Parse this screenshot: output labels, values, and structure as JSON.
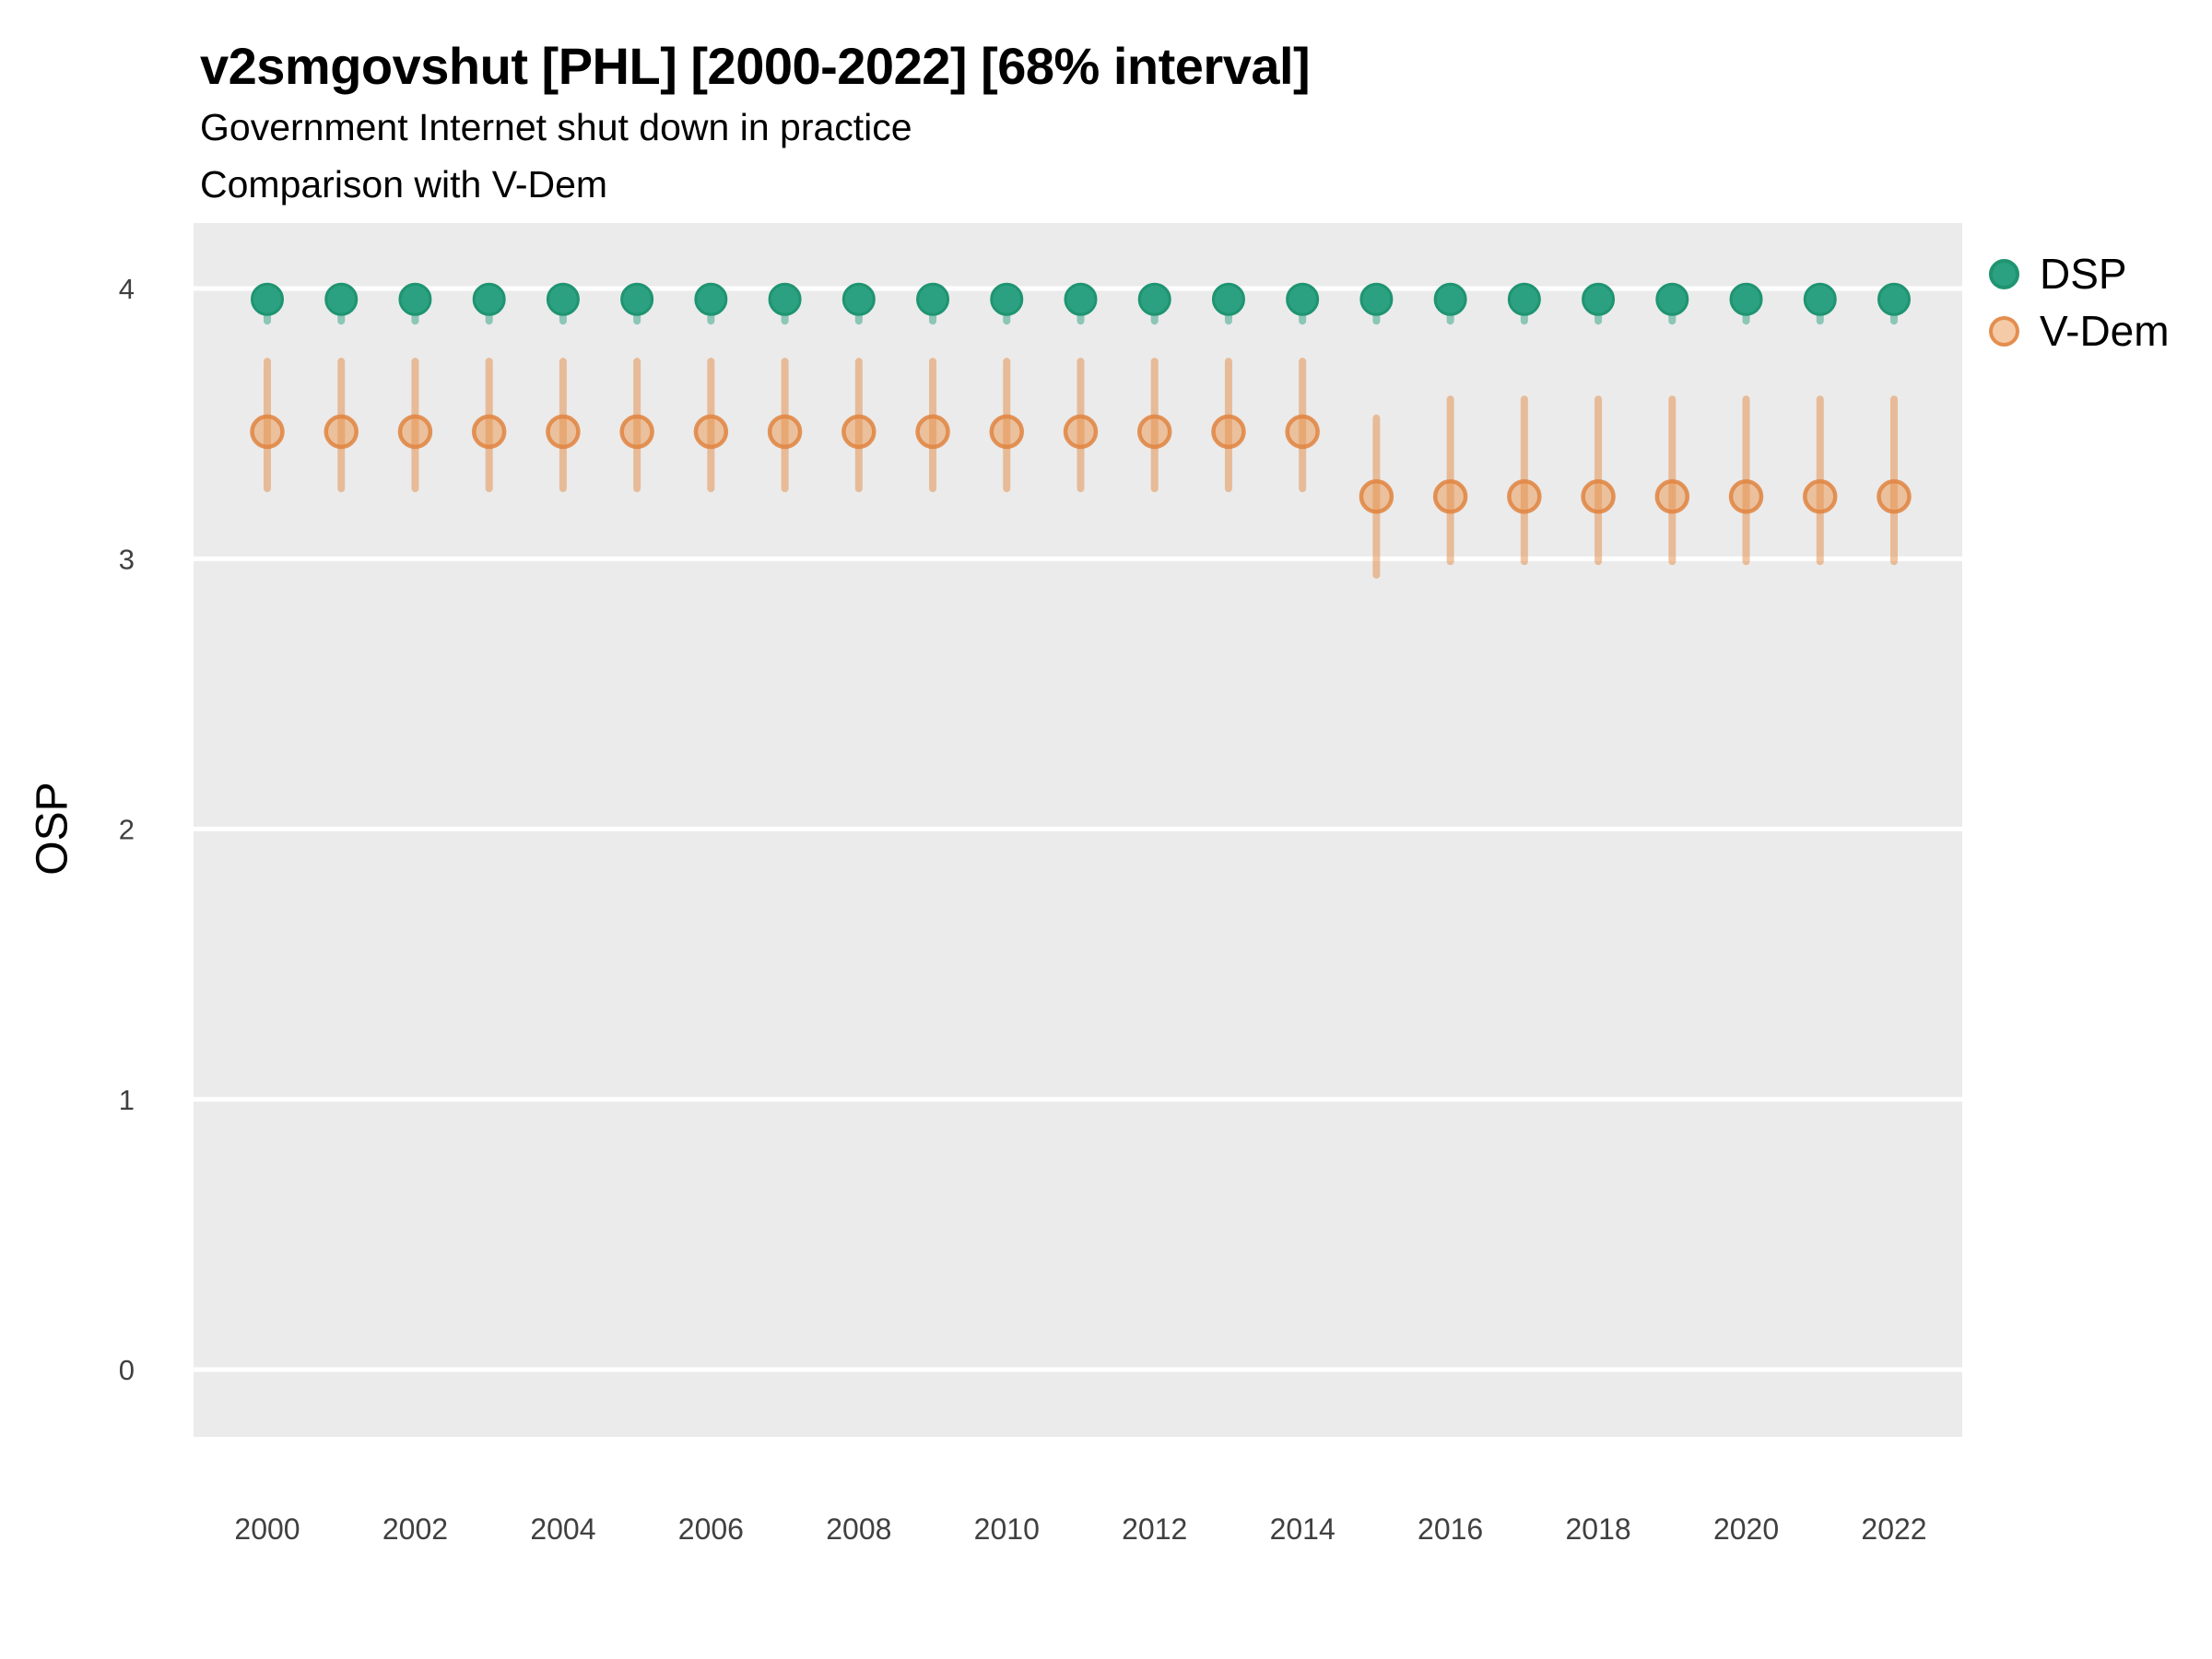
{
  "header": {
    "title": "v2smgovshut [PHL] [2000-2022] [68% interval]",
    "subtitle_line1": "Government Internet shut down in practice",
    "subtitle_line2": "Comparison with V-Dem"
  },
  "chart_data": {
    "type": "scatter",
    "title": "v2smgovshut [PHL] [2000-2022] [68% interval]",
    "subtitle": [
      "Government Internet shut down in practice",
      "Comparison with V-Dem"
    ],
    "xlabel": "",
    "ylabel": "OSP",
    "interval": "68%",
    "ylim": [
      -0.25,
      4.25
    ],
    "yticks": [
      0,
      1,
      2,
      3,
      4
    ],
    "xlim": [
      1999,
      2023
    ],
    "xticks": [
      2000,
      2002,
      2004,
      2006,
      2008,
      2010,
      2012,
      2014,
      2016,
      2018,
      2020,
      2022
    ],
    "grid": "horizontal-major-only",
    "legend_position": "top-right",
    "panel_bg": "#ebebeb",
    "gridline_color": "#ffffff",
    "tick_label_color": "#404040",
    "series": [
      {
        "name": "DSP",
        "marker_fill": "#2ca181",
        "marker_stroke": "#1f9471",
        "marker_stroke_width": 3,
        "interval_color": "rgba(44,161,129,0.5)",
        "points": [
          {
            "x": 2000,
            "y": 3.96,
            "lo": 3.88,
            "hi": 4.0
          },
          {
            "x": 2001,
            "y": 3.96,
            "lo": 3.88,
            "hi": 4.0
          },
          {
            "x": 2002,
            "y": 3.96,
            "lo": 3.88,
            "hi": 4.0
          },
          {
            "x": 2003,
            "y": 3.96,
            "lo": 3.88,
            "hi": 4.0
          },
          {
            "x": 2004,
            "y": 3.96,
            "lo": 3.88,
            "hi": 4.0
          },
          {
            "x": 2005,
            "y": 3.96,
            "lo": 3.88,
            "hi": 4.0
          },
          {
            "x": 2006,
            "y": 3.96,
            "lo": 3.88,
            "hi": 4.0
          },
          {
            "x": 2007,
            "y": 3.96,
            "lo": 3.88,
            "hi": 4.0
          },
          {
            "x": 2008,
            "y": 3.96,
            "lo": 3.88,
            "hi": 4.0
          },
          {
            "x": 2009,
            "y": 3.96,
            "lo": 3.88,
            "hi": 4.0
          },
          {
            "x": 2010,
            "y": 3.96,
            "lo": 3.88,
            "hi": 4.0
          },
          {
            "x": 2011,
            "y": 3.96,
            "lo": 3.88,
            "hi": 4.0
          },
          {
            "x": 2012,
            "y": 3.96,
            "lo": 3.88,
            "hi": 4.0
          },
          {
            "x": 2013,
            "y": 3.96,
            "lo": 3.88,
            "hi": 4.0
          },
          {
            "x": 2014,
            "y": 3.96,
            "lo": 3.88,
            "hi": 4.0
          },
          {
            "x": 2015,
            "y": 3.96,
            "lo": 3.88,
            "hi": 4.0
          },
          {
            "x": 2016,
            "y": 3.96,
            "lo": 3.88,
            "hi": 4.0
          },
          {
            "x": 2017,
            "y": 3.96,
            "lo": 3.88,
            "hi": 4.0
          },
          {
            "x": 2018,
            "y": 3.96,
            "lo": 3.88,
            "hi": 4.0
          },
          {
            "x": 2019,
            "y": 3.96,
            "lo": 3.88,
            "hi": 4.0
          },
          {
            "x": 2020,
            "y": 3.96,
            "lo": 3.88,
            "hi": 4.0
          },
          {
            "x": 2021,
            "y": 3.96,
            "lo": 3.88,
            "hi": 4.0
          },
          {
            "x": 2022,
            "y": 3.96,
            "lo": 3.88,
            "hi": 4.0
          }
        ]
      },
      {
        "name": "V-Dem",
        "marker_fill": "rgba(233,150,80,0.5)",
        "marker_stroke": "rgba(224,132,64,0.85)",
        "marker_stroke_width": 4.5,
        "interval_color": "rgba(228,140,70,0.5)",
        "points": [
          {
            "x": 2000,
            "y": 3.47,
            "lo": 3.26,
            "hi": 3.73
          },
          {
            "x": 2001,
            "y": 3.47,
            "lo": 3.26,
            "hi": 3.73
          },
          {
            "x": 2002,
            "y": 3.47,
            "lo": 3.26,
            "hi": 3.73
          },
          {
            "x": 2003,
            "y": 3.47,
            "lo": 3.26,
            "hi": 3.73
          },
          {
            "x": 2004,
            "y": 3.47,
            "lo": 3.26,
            "hi": 3.73
          },
          {
            "x": 2005,
            "y": 3.47,
            "lo": 3.26,
            "hi": 3.73
          },
          {
            "x": 2006,
            "y": 3.47,
            "lo": 3.26,
            "hi": 3.73
          },
          {
            "x": 2007,
            "y": 3.47,
            "lo": 3.26,
            "hi": 3.73
          },
          {
            "x": 2008,
            "y": 3.47,
            "lo": 3.26,
            "hi": 3.73
          },
          {
            "x": 2009,
            "y": 3.47,
            "lo": 3.26,
            "hi": 3.73
          },
          {
            "x": 2010,
            "y": 3.47,
            "lo": 3.26,
            "hi": 3.73
          },
          {
            "x": 2011,
            "y": 3.47,
            "lo": 3.26,
            "hi": 3.73
          },
          {
            "x": 2012,
            "y": 3.47,
            "lo": 3.26,
            "hi": 3.73
          },
          {
            "x": 2013,
            "y": 3.47,
            "lo": 3.26,
            "hi": 3.73
          },
          {
            "x": 2014,
            "y": 3.47,
            "lo": 3.26,
            "hi": 3.73
          },
          {
            "x": 2015,
            "y": 3.23,
            "lo": 2.94,
            "hi": 3.52
          },
          {
            "x": 2016,
            "y": 3.23,
            "lo": 2.99,
            "hi": 3.59
          },
          {
            "x": 2017,
            "y": 3.23,
            "lo": 2.99,
            "hi": 3.59
          },
          {
            "x": 2018,
            "y": 3.23,
            "lo": 2.99,
            "hi": 3.59
          },
          {
            "x": 2019,
            "y": 3.23,
            "lo": 2.99,
            "hi": 3.59
          },
          {
            "x": 2020,
            "y": 3.23,
            "lo": 2.99,
            "hi": 3.59
          },
          {
            "x": 2021,
            "y": 3.23,
            "lo": 2.99,
            "hi": 3.59
          },
          {
            "x": 2022,
            "y": 3.23,
            "lo": 2.99,
            "hi": 3.59
          }
        ]
      }
    ]
  }
}
